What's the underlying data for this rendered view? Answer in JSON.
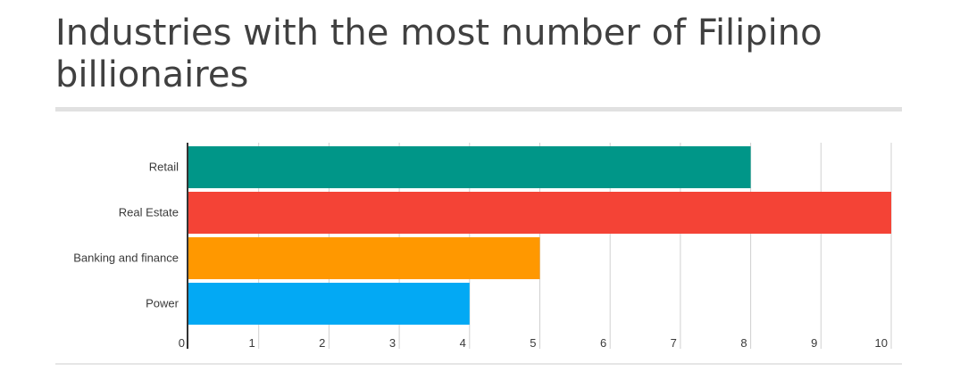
{
  "title": "Industries with the most number of Filipino billionaires",
  "chart_data": {
    "type": "bar",
    "orientation": "horizontal",
    "title": "Industries with the most number of Filipino billionaires",
    "categories": [
      "Retail",
      "Real Estate",
      "Banking and finance",
      "Power"
    ],
    "values": [
      8,
      10,
      5,
      4
    ],
    "colors": [
      "#009688",
      "#f44336",
      "#ff9800",
      "#03a9f4"
    ],
    "xlim": [
      0,
      10
    ],
    "xticks": [
      0,
      1,
      2,
      3,
      4,
      5,
      6,
      7,
      8,
      9,
      10
    ],
    "grid": true,
    "legend": "none"
  }
}
